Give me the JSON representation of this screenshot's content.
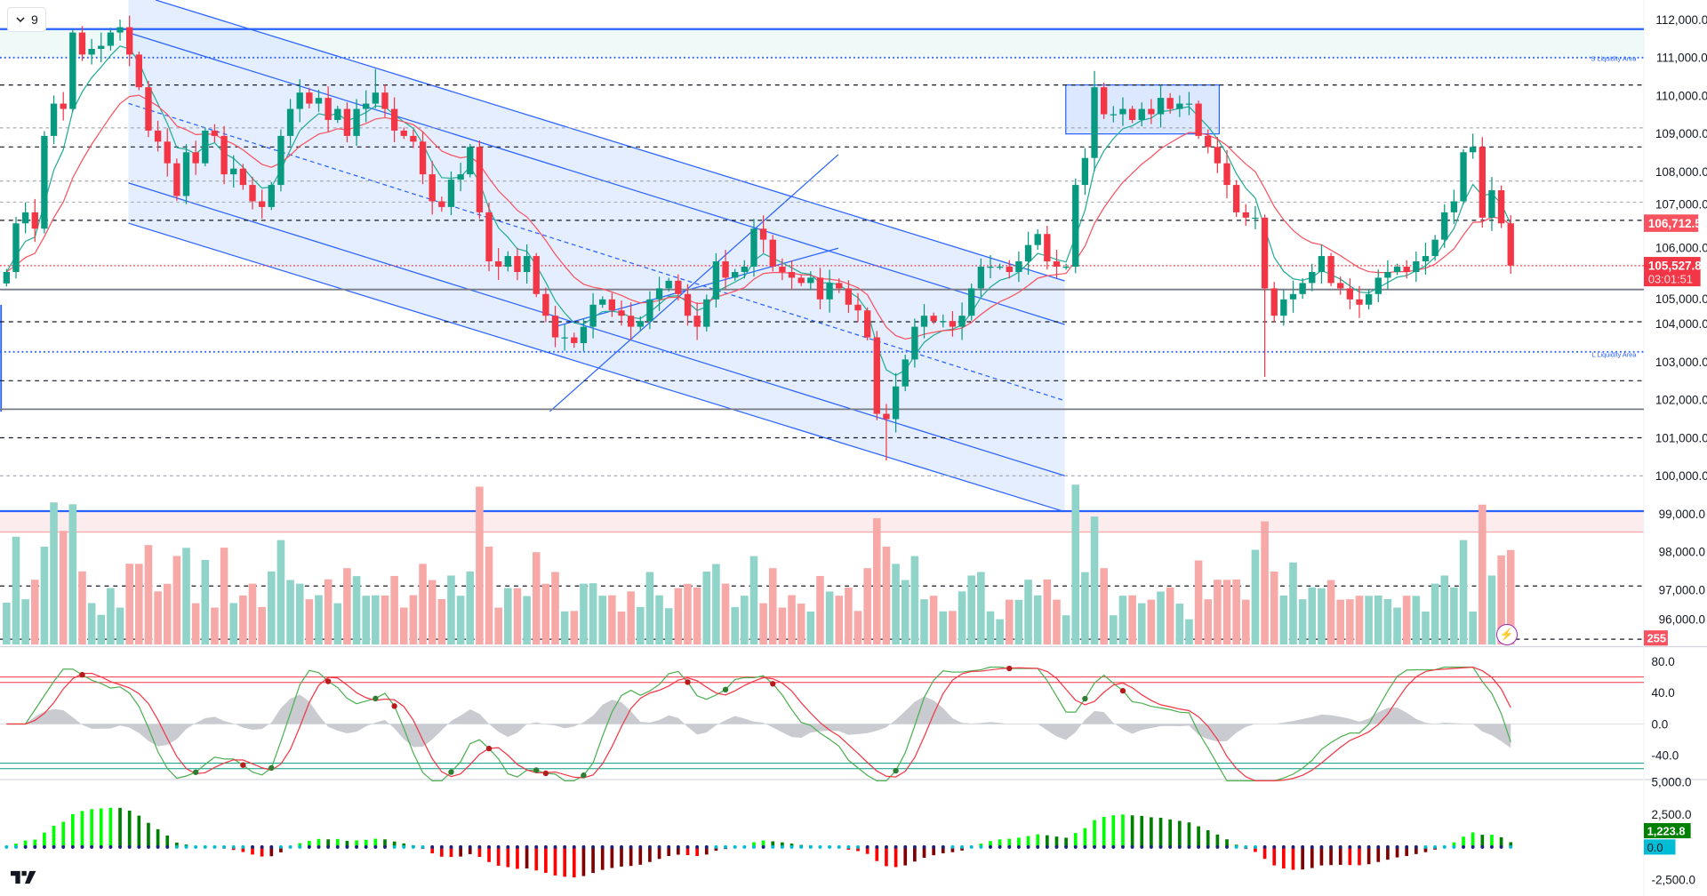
{
  "header": {
    "interval_badge": "9"
  },
  "annotations": {
    "s_liquidity": "S Liquidity Area",
    "l_liquidity": "L Liquidity Area"
  },
  "labels": {
    "prev_price": "106,712.5",
    "last_price": "105,527.8",
    "countdown": "03:01:51",
    "volume_last": "255",
    "momentum_last": "1,223.8",
    "momentum_zero": "0.0"
  },
  "colors": {
    "up": "#089981",
    "down": "#f23645",
    "ema_fast": "#22ab94",
    "ema_slow": "#f7525f",
    "drawing_blue": "#2962ff",
    "channel_fill": "#dbe8fd",
    "vol_up": "#8fd3c9",
    "vol_down": "#f7a9a7",
    "lime": "#00ff00",
    "green": "#008000",
    "red": "#ff0000",
    "maroon": "#800000"
  },
  "chart_data": {
    "type": "candlestick",
    "title": "",
    "y_price_ticks": [
      "112,000.0",
      "111,000.0",
      "110,000.0",
      "109,000.0",
      "108,000.0",
      "107,000.0",
      "106,000.0",
      "105,000.0",
      "104,000.0",
      "103,000.0",
      "102,000.0",
      "101,000.0",
      "100,000.0",
      "99,000.0",
      "98,000.0",
      "97,000.0",
      "96,000.0"
    ],
    "y_price_tick_values": [
      112000,
      111000,
      110000,
      109000,
      108000,
      107000,
      106000,
      105000,
      104000,
      103000,
      102000,
      101000,
      100000,
      99000,
      98000,
      97000,
      96000
    ],
    "ylim": [
      95650,
      112100
    ],
    "closes": [
      105360,
      106640,
      106930,
      106500,
      108940,
      109790,
      109650,
      111660,
      111080,
      111230,
      111310,
      111660,
      111800,
      111080,
      110220,
      109080,
      108790,
      108220,
      107360,
      108510,
      108220,
      109080,
      108940,
      107930,
      108080,
      107650,
      107220,
      107070,
      107650,
      108940,
      109650,
      110080,
      109790,
      109940,
      109360,
      109650,
      108940,
      109650,
      109790,
      110080,
      109650,
      109080,
      108940,
      108790,
      107930,
      107220,
      107070,
      107790,
      107930,
      108650,
      106930,
      105640,
      105500,
      105780,
      105360,
      105780,
      104780,
      104210,
      103640,
      103640,
      103490,
      103920,
      104500,
      104640,
      104350,
      104210,
      103920,
      104070,
      104640,
      104930,
      105130,
      104780,
      104210,
      103920,
      104640,
      105640,
      105210,
      105360,
      105500,
      106500,
      106210,
      105500,
      105360,
      105210,
      105070,
      105210,
      104640,
      105070,
      104930,
      104500,
      104350,
      103640,
      101630,
      101490,
      102350,
      103060,
      103920,
      104210,
      104070,
      104070,
      103920,
      104210,
      104930,
      105500,
      105500,
      105500,
      105360,
      105640,
      106070,
      106360,
      105640,
      105500,
      105500,
      107650,
      108360,
      110220,
      109510,
      109510,
      109650,
      109360,
      109650,
      109510,
      109940,
      109650,
      109790,
      109790,
      108940,
      108650,
      108220,
      107650,
      106930,
      106790,
      106790,
      104930,
      104210,
      104640,
      104780,
      105070,
      105360,
      105780,
      105070,
      104930,
      104640,
      104500,
      104780,
      105210,
      105360,
      105500,
      105360,
      105640,
      105780,
      106210,
      106930,
      107220,
      108510,
      108650,
      106790,
      107510,
      106640,
      105530
    ],
    "wick_extremes": [
      {
        "index": 93,
        "low": 100400
      },
      {
        "index": 133,
        "low": 102600
      },
      {
        "index": 115,
        "high": 110650
      },
      {
        "index": 155,
        "high": 109000
      },
      {
        "index": 12,
        "high": 112000
      },
      {
        "index": 39,
        "high": 110700
      }
    ],
    "volume_spikes": [
      {
        "index": 5,
        "value": 900
      },
      {
        "index": 6,
        "value": 720
      },
      {
        "index": 4,
        "value": 620
      },
      {
        "index": 15,
        "value": 630
      },
      {
        "index": 50,
        "value": 1000
      },
      {
        "index": 51,
        "value": 620
      },
      {
        "index": 92,
        "value": 800
      },
      {
        "index": 93,
        "value": 620
      },
      {
        "index": 96,
        "value": 560
      },
      {
        "index": 133,
        "value": 780
      },
      {
        "index": 132,
        "value": 600
      },
      {
        "index": 136,
        "value": 520
      }
    ],
    "horizontal_levels": [
      {
        "price": 111750,
        "style": "solid-blue"
      },
      {
        "price": 111000,
        "style": "dotted-blue"
      },
      {
        "price": 110280,
        "style": "dashed"
      },
      {
        "price": 109150,
        "style": "dashed-light"
      },
      {
        "price": 108650,
        "style": "dashed"
      },
      {
        "price": 107750,
        "style": "dashed-light"
      },
      {
        "price": 107200,
        "style": "dashed-light"
      },
      {
        "price": 106720,
        "style": "dashed"
      },
      {
        "price": 105527.8,
        "style": "dotted-red"
      },
      {
        "price": 104900,
        "style": "solid-gray"
      },
      {
        "price": 104050,
        "style": "dashed"
      },
      {
        "price": 103260,
        "style": "dotted-blue"
      },
      {
        "price": 102500,
        "style": "dashed"
      },
      {
        "price": 101750,
        "style": "solid-gray"
      },
      {
        "price": 101000,
        "style": "dashed"
      },
      {
        "price": 100000,
        "style": "dashed-light"
      },
      {
        "price": 99070,
        "style": "solid-blue"
      },
      {
        "price": 97100,
        "style": "dashed"
      },
      {
        "price": 95700,
        "style": "dashed"
      }
    ],
    "oscillator": {
      "ticks": [
        "80.0",
        "40.0",
        "0.0",
        "-40.0"
      ],
      "tick_values": [
        80,
        40,
        0,
        -40
      ],
      "upper_bands": [
        60,
        53
      ],
      "lower_bands": [
        -50,
        -57
      ]
    },
    "momentum": {
      "ticks": [
        "5,000.0",
        "2,500.0",
        "-2,500.0"
      ],
      "tick_values": [
        5000,
        2500,
        -2500
      ],
      "max_abs": 3000
    }
  }
}
